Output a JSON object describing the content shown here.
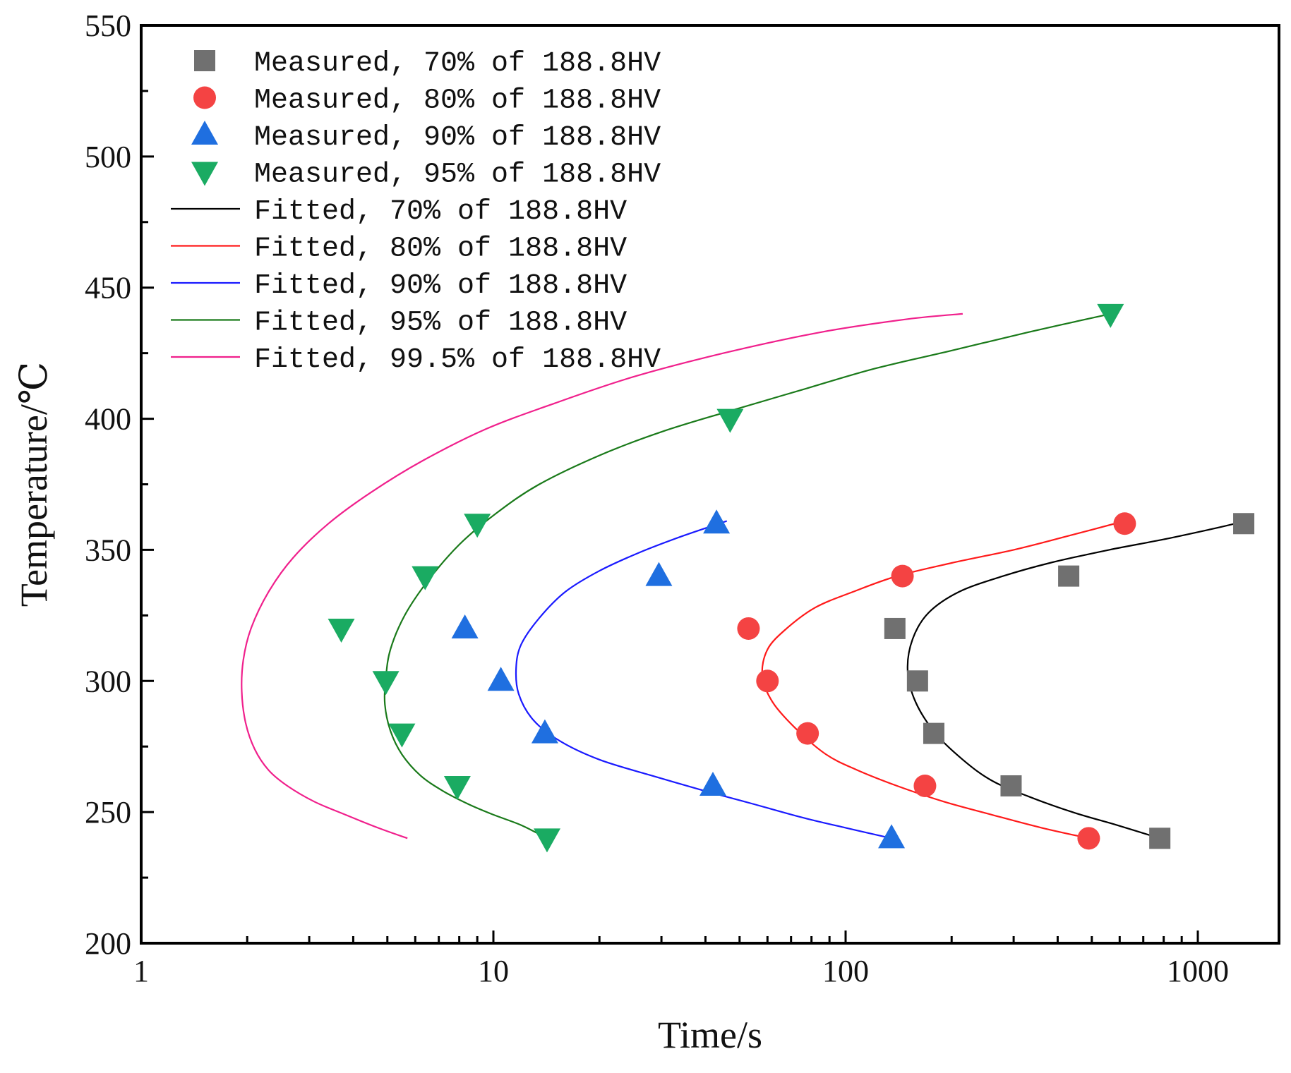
{
  "chart_data": {
    "type": "scatter",
    "title": "",
    "xlabel": "Time/s",
    "ylabel": "Temperature/℃",
    "xscale": "log",
    "xlim": [
      1,
      1700
    ],
    "ylim": [
      200,
      550
    ],
    "xticks": [
      1,
      10,
      100,
      1000
    ],
    "xtick_labels": [
      "1",
      "10",
      "100",
      "1000"
    ],
    "yticks": [
      200,
      250,
      300,
      350,
      400,
      450,
      500,
      550
    ],
    "ytick_labels": [
      "200",
      "250",
      "300",
      "350",
      "400",
      "450",
      "500",
      "550"
    ],
    "grid": false,
    "legend_position": "top-left",
    "measured": [
      {
        "name": "Measured, 70% of 188.8HV",
        "marker": "square",
        "color": "#707070",
        "points": [
          [
            780,
            240
          ],
          [
            295,
            260
          ],
          [
            178,
            280
          ],
          [
            160,
            300
          ],
          [
            138,
            320
          ],
          [
            430,
            340
          ],
          [
            1350,
            360
          ]
        ]
      },
      {
        "name": "Measured, 80% of 188.8HV",
        "marker": "circle",
        "color": "#f44343",
        "points": [
          [
            490,
            240
          ],
          [
            168,
            260
          ],
          [
            78,
            280
          ],
          [
            60,
            300
          ],
          [
            53,
            320
          ],
          [
            145,
            340
          ],
          [
            620,
            360
          ]
        ]
      },
      {
        "name": "Measured, 90% of 188.8HV",
        "marker": "triangle-up",
        "color": "#1f6fe0",
        "points": [
          [
            135,
            240
          ],
          [
            42,
            260
          ],
          [
            14,
            280
          ],
          [
            10.5,
            300
          ],
          [
            8.3,
            320
          ],
          [
            29.5,
            340
          ],
          [
            43,
            360
          ]
        ]
      },
      {
        "name": "Measured, 95% of 188.8HV",
        "marker": "triangle-down",
        "color": "#1aab62",
        "points": [
          [
            14.2,
            240
          ],
          [
            7.9,
            260
          ],
          [
            5.5,
            280
          ],
          [
            4.95,
            300
          ],
          [
            3.7,
            320
          ],
          [
            6.4,
            340
          ],
          [
            9.0,
            360
          ],
          [
            47,
            400
          ],
          [
            565,
            440
          ]
        ]
      }
    ],
    "fitted": [
      {
        "name": "Fitted, 70% of 188.8HV",
        "color": "#000000",
        "points": [
          [
            780,
            240
          ],
          [
            590,
            245
          ],
          [
            440,
            250
          ],
          [
            330,
            256
          ],
          [
            260,
            262
          ],
          [
            215,
            270
          ],
          [
            180,
            280
          ],
          [
            158,
            292
          ],
          [
            150,
            304
          ],
          [
            155,
            316
          ],
          [
            172,
            326
          ],
          [
            210,
            334
          ],
          [
            280,
            340
          ],
          [
            380,
            345
          ],
          [
            560,
            350
          ],
          [
            800,
            354
          ],
          [
            1100,
            358
          ],
          [
            1370,
            361
          ]
        ]
      },
      {
        "name": "Fitted, 80% of 188.8HV",
        "color": "#ff1a1a",
        "points": [
          [
            490,
            240
          ],
          [
            360,
            244
          ],
          [
            260,
            249
          ],
          [
            190,
            254
          ],
          [
            140,
            260
          ],
          [
            108,
            266
          ],
          [
            88,
            272
          ],
          [
            72,
            282
          ],
          [
            62,
            292
          ],
          [
            58,
            302
          ],
          [
            60,
            312
          ],
          [
            68,
            320
          ],
          [
            82,
            328
          ],
          [
            105,
            334
          ],
          [
            140,
            340
          ],
          [
            200,
            345
          ],
          [
            300,
            350
          ],
          [
            420,
            355
          ],
          [
            620,
            361
          ]
        ]
      },
      {
        "name": "Fitted, 90% of 188.8HV",
        "color": "#1a1aff",
        "points": [
          [
            135,
            240
          ],
          [
            100,
            244
          ],
          [
            75,
            248
          ],
          [
            55,
            253
          ],
          [
            40,
            258
          ],
          [
            28,
            264
          ],
          [
            20,
            270
          ],
          [
            15.5,
            277
          ],
          [
            13,
            285
          ],
          [
            11.8,
            295
          ],
          [
            11.6,
            305
          ],
          [
            12,
            314
          ],
          [
            13.5,
            324
          ],
          [
            16,
            334
          ],
          [
            20,
            342
          ],
          [
            26,
            349
          ],
          [
            34,
            355
          ],
          [
            46,
            361
          ]
        ]
      },
      {
        "name": "Fitted, 95% of 188.8HV",
        "color": "#1a7a1a",
        "points": [
          [
            14.2,
            240
          ],
          [
            12,
            245
          ],
          [
            10,
            249
          ],
          [
            8.5,
            253
          ],
          [
            7.2,
            258
          ],
          [
            6.2,
            264
          ],
          [
            5.5,
            272
          ],
          [
            5.1,
            281
          ],
          [
            4.92,
            291
          ],
          [
            4.95,
            301
          ],
          [
            5.1,
            312
          ],
          [
            5.6,
            325
          ],
          [
            6.5,
            338
          ],
          [
            8,
            352
          ],
          [
            10.2,
            364
          ],
          [
            13.5,
            375
          ],
          [
            20,
            386
          ],
          [
            30,
            395
          ],
          [
            47,
            403
          ],
          [
            75,
            411
          ],
          [
            120,
            419
          ],
          [
            200,
            426
          ],
          [
            330,
            433
          ],
          [
            565,
            440
          ]
        ]
      },
      {
        "name": "Fitted, 99.5% of 188.8HV",
        "color": "#f0208c",
        "points": [
          [
            5.7,
            240
          ],
          [
            4.7,
            244
          ],
          [
            3.8,
            249
          ],
          [
            3.1,
            254
          ],
          [
            2.6,
            260
          ],
          [
            2.3,
            266
          ],
          [
            2.1,
            274
          ],
          [
            1.98,
            284
          ],
          [
            1.93,
            296
          ],
          [
            1.95,
            308
          ],
          [
            2.05,
            320
          ],
          [
            2.3,
            334
          ],
          [
            2.7,
            347
          ],
          [
            3.4,
            360
          ],
          [
            4.5,
            372
          ],
          [
            6.3,
            384
          ],
          [
            9.5,
            396
          ],
          [
            15,
            406
          ],
          [
            25,
            416
          ],
          [
            45,
            425
          ],
          [
            85,
            433
          ],
          [
            150,
            438
          ],
          [
            215,
            440
          ]
        ]
      }
    ]
  }
}
